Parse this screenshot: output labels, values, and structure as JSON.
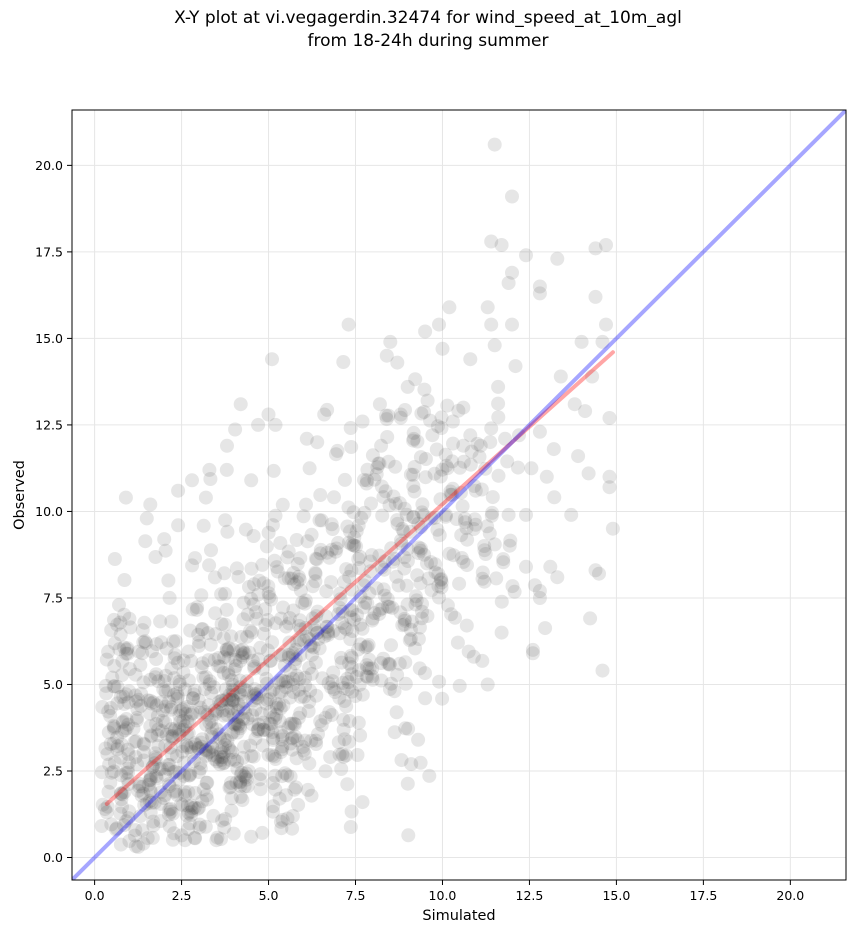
{
  "chart_data": {
    "type": "scatter",
    "title": "X-Y plot at vi.vegagerdin.32474 for wind_speed_at_10m_agl",
    "subtitle": "from 18-24h during summer",
    "xlabel": "Simulated",
    "ylabel": "Observed",
    "xlim": [
      -0.65,
      21.6
    ],
    "ylim": [
      -0.65,
      21.6
    ],
    "x_ticks": [
      0.0,
      2.5,
      5.0,
      7.5,
      10.0,
      12.5,
      15.0,
      17.5,
      20.0
    ],
    "x_tick_labels": [
      "0.0",
      "2.5",
      "5.0",
      "7.5",
      "10.0",
      "12.5",
      "15.0",
      "17.5",
      "20.0"
    ],
    "y_ticks": [
      0.0,
      2.5,
      5.0,
      7.5,
      10.0,
      12.5,
      15.0,
      17.5,
      20.0
    ],
    "y_tick_labels": [
      "0.0",
      "2.5",
      "5.0",
      "7.5",
      "10.0",
      "12.5",
      "15.0",
      "17.5",
      "20.0"
    ],
    "grid": true,
    "colors": {
      "points": "#404040",
      "fit_line": "#ff0000",
      "identity_line": "#0000ff",
      "grid": "#e6e6e6"
    },
    "lines": [
      {
        "role": "regression",
        "x": [
          0.35,
          14.9
        ],
        "y": [
          1.55,
          14.6
        ]
      },
      {
        "role": "identity",
        "x": [
          -0.65,
          21.6
        ],
        "y": [
          -0.65,
          21.6
        ]
      }
    ],
    "highlighted_points": [
      [
        11.5,
        20.6
      ],
      [
        12.0,
        19.1
      ],
      [
        11.4,
        17.8
      ],
      [
        11.7,
        17.7
      ],
      [
        12.4,
        17.4
      ],
      [
        13.3,
        17.3
      ],
      [
        14.4,
        17.6
      ],
      [
        14.7,
        17.7
      ],
      [
        12.0,
        16.9
      ],
      [
        11.9,
        16.6
      ],
      [
        12.8,
        16.5
      ],
      [
        12.8,
        16.3
      ],
      [
        14.4,
        16.2
      ],
      [
        11.3,
        15.9
      ],
      [
        10.2,
        15.9
      ],
      [
        11.4,
        15.4
      ],
      [
        12.0,
        15.4
      ],
      [
        14.7,
        15.4
      ],
      [
        7.3,
        15.4
      ],
      [
        9.5,
        15.2
      ],
      [
        9.9,
        15.4
      ],
      [
        11.5,
        14.8
      ],
      [
        14.0,
        14.9
      ],
      [
        14.6,
        14.9
      ],
      [
        8.5,
        14.9
      ],
      [
        8.4,
        14.5
      ],
      [
        8.7,
        14.3
      ],
      [
        10.0,
        14.7
      ],
      [
        10.8,
        14.4
      ],
      [
        11.6,
        13.6
      ],
      [
        13.4,
        13.9
      ],
      [
        14.3,
        13.9
      ],
      [
        5.1,
        14.4
      ],
      [
        4.2,
        13.1
      ],
      [
        13.8,
        13.1
      ],
      [
        14.1,
        12.9
      ],
      [
        14.8,
        12.7
      ],
      [
        12.1,
        14.2
      ],
      [
        10.6,
        13.0
      ],
      [
        11.8,
        12.1
      ],
      [
        12.2,
        12.2
      ],
      [
        12.8,
        12.3
      ],
      [
        13.2,
        11.8
      ],
      [
        13.9,
        11.6
      ],
      [
        14.2,
        11.1
      ],
      [
        14.8,
        11.0
      ],
      [
        14.8,
        10.7
      ],
      [
        13.0,
        11.0
      ],
      [
        13.7,
        9.9
      ],
      [
        12.4,
        9.9
      ],
      [
        11.9,
        9.9
      ],
      [
        10.1,
        9.9
      ],
      [
        11.2,
        9.0
      ],
      [
        14.9,
        9.5
      ],
      [
        14.5,
        8.2
      ],
      [
        14.4,
        8.3
      ],
      [
        13.1,
        8.4
      ],
      [
        13.3,
        8.1
      ],
      [
        12.4,
        8.4
      ],
      [
        12.8,
        7.7
      ],
      [
        12.8,
        7.5
      ],
      [
        11.7,
        6.5
      ],
      [
        10.7,
        6.7
      ],
      [
        12.6,
        6.0
      ],
      [
        12.6,
        5.9
      ],
      [
        14.6,
        5.4
      ],
      [
        10.9,
        5.8
      ],
      [
        11.3,
        5.0
      ],
      [
        9.5,
        4.6
      ],
      [
        9.3,
        3.4
      ],
      [
        9.1,
        2.7
      ],
      [
        7.7,
        1.6
      ],
      [
        5.5,
        1.8
      ],
      [
        5.7,
        1.2
      ],
      [
        4.5,
        0.6
      ],
      [
        3.5,
        0.5
      ],
      [
        2.6,
        0.5
      ],
      [
        1.4,
        0.4
      ],
      [
        0.3,
        1.4
      ],
      [
        0.4,
        1.9
      ],
      [
        0.9,
        10.4
      ],
      [
        1.6,
        10.2
      ],
      [
        2.4,
        10.6
      ],
      [
        2.8,
        10.9
      ],
      [
        3.3,
        11.2
      ],
      [
        3.8,
        11.2
      ],
      [
        4.5,
        10.9
      ],
      [
        3.2,
        10.4
      ],
      [
        1.5,
        9.8
      ],
      [
        2.0,
        9.2
      ],
      [
        2.4,
        9.6
      ],
      [
        1.0,
        6.9
      ],
      [
        0.7,
        7.3
      ],
      [
        5.2,
        12.5
      ],
      [
        5.0,
        12.8
      ],
      [
        4.7,
        12.5
      ],
      [
        6.1,
        12.1
      ],
      [
        6.4,
        12.0
      ],
      [
        6.6,
        12.8
      ],
      [
        7.7,
        12.6
      ],
      [
        8.8,
        12.8
      ],
      [
        9.0,
        13.6
      ],
      [
        8.2,
        13.1
      ],
      [
        10.3,
        12.6
      ],
      [
        10.6,
        11.9
      ],
      [
        11.1,
        11.9
      ],
      [
        11.4,
        12.4
      ]
    ],
    "cloud_clusters": [
      {
        "center": [
          2.5,
          2.8
        ],
        "spread": [
          1.4,
          1.5
        ],
        "n": 260
      },
      {
        "center": [
          4.2,
          4.3
        ],
        "spread": [
          1.6,
          1.7
        ],
        "n": 300
      },
      {
        "center": [
          6.0,
          6.2
        ],
        "spread": [
          1.8,
          1.9
        ],
        "n": 270
      },
      {
        "center": [
          8.2,
          8.7
        ],
        "spread": [
          1.7,
          2.0
        ],
        "n": 190
      },
      {
        "center": [
          10.0,
          10.8
        ],
        "spread": [
          1.5,
          1.8
        ],
        "n": 90
      },
      {
        "center": [
          1.2,
          4.8
        ],
        "spread": [
          0.7,
          1.8
        ],
        "n": 60
      }
    ]
  }
}
